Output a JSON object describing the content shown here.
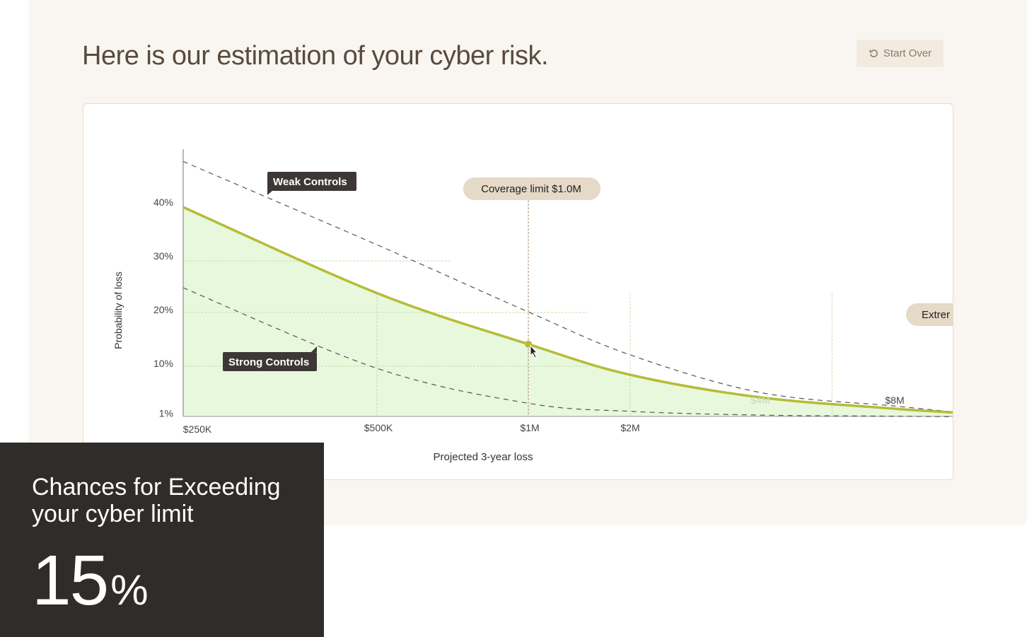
{
  "header": {
    "title": "Here is our estimation of your cyber risk.",
    "start_over_label": "Start Over",
    "start_over_icon": "refresh-icon"
  },
  "colors": {
    "main_curve": "#b5bc38",
    "area_fill": "#e8f8dc",
    "dashed": "#555555",
    "tag_dark": "#3d3835",
    "pill": "#e5d9c7"
  },
  "chart_data": {
    "type": "area",
    "xlabel": "Projected 3-year loss",
    "ylabel": "Probability of loss",
    "x_scale": "log",
    "x_ticks": [
      "$250K",
      "$500K",
      "$1M",
      "$2M",
      "$4M",
      "$8M"
    ],
    "y_ticks": [
      "1%",
      "10%",
      "20%",
      "30%",
      "40%"
    ],
    "grid": true,
    "x": [
      250000,
      500000,
      1000000,
      2000000,
      4000000,
      8000000,
      12000000
    ],
    "series": [
      {
        "name": "",
        "style": "solid",
        "values": [
          40,
          24,
          14.5,
          8.8,
          4.6,
          2.5,
          1.8
        ]
      },
      {
        "name": "Weak Controls",
        "style": "dashed",
        "values": [
          48.5,
          33,
          20.5,
          12.5,
          5.5,
          3,
          1.9
        ]
      },
      {
        "name": "Strong Controls",
        "style": "dashed",
        "values": [
          25,
          10,
          3.5,
          2,
          1.3,
          1.1,
          1
        ]
      }
    ],
    "annotations": {
      "coverage_limit": "Coverage limit $1.0M",
      "coverage_x": 1000000,
      "extreme_label": "Extrer",
      "marker_value": 14.5
    }
  },
  "callout": {
    "title": "Chances for Exceeding your cyber limit",
    "value": "15",
    "unit": "%"
  }
}
